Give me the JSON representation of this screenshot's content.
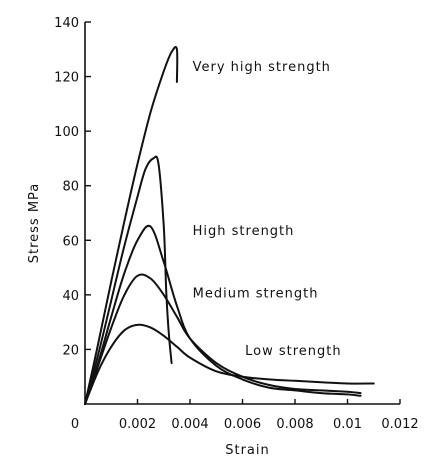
{
  "chart_data": {
    "type": "line",
    "title": "",
    "xlabel": "Strain",
    "ylabel": "Stress MPa",
    "xlim": [
      0,
      0.012
    ],
    "ylim": [
      0,
      140
    ],
    "x_ticks": [
      "0",
      "0.002",
      "0.004",
      "0.006",
      "0.008",
      "0.01",
      "0.012"
    ],
    "y_ticks": [
      "20",
      "40",
      "60",
      "80",
      "100",
      "120",
      "140"
    ],
    "grid": false,
    "legend": "none",
    "series": [
      {
        "name": "Very high strength",
        "x": [
          0,
          0.0005,
          0.001,
          0.0015,
          0.002,
          0.0025,
          0.003,
          0.0033,
          0.0035,
          0.0035
        ],
        "y": [
          0,
          22,
          45,
          67,
          88,
          107,
          122,
          129,
          130,
          118
        ]
      },
      {
        "name": "High strength",
        "x": [
          0,
          0.0005,
          0.001,
          0.0015,
          0.002,
          0.0023,
          0.0026,
          0.0028,
          0.003,
          0.0031,
          0.0032,
          0.0033
        ],
        "y": [
          0,
          18,
          38,
          58,
          76,
          86,
          90,
          88,
          65,
          40,
          25,
          15
        ]
      },
      {
        "name": "Medium strength",
        "x": [
          0,
          0.0005,
          0.001,
          0.0015,
          0.002,
          0.0025,
          0.003,
          0.0035,
          0.004,
          0.005,
          0.006,
          0.007,
          0.008,
          0.009,
          0.01,
          0.0105
        ],
        "y": [
          0,
          15,
          32,
          48,
          60,
          65,
          52,
          36,
          24,
          14,
          9,
          6,
          5,
          4,
          3.5,
          3
        ]
      },
      {
        "name": "Medium strength",
        "x": [
          0,
          0.0005,
          0.001,
          0.0015,
          0.002,
          0.0025,
          0.003,
          0.0035,
          0.004,
          0.005,
          0.006,
          0.007,
          0.008,
          0.009,
          0.01,
          0.0105
        ],
        "y": [
          0,
          14,
          28,
          40,
          47,
          46,
          40,
          32,
          24,
          15,
          10,
          7,
          5.5,
          5,
          4.5,
          4
        ]
      },
      {
        "name": "Low strength",
        "x": [
          0,
          0.0005,
          0.001,
          0.0015,
          0.002,
          0.0025,
          0.003,
          0.0035,
          0.004,
          0.005,
          0.006,
          0.007,
          0.008,
          0.009,
          0.01,
          0.011
        ],
        "y": [
          0,
          12,
          21,
          27,
          29,
          28,
          25,
          21,
          17,
          12,
          10,
          9,
          8.5,
          8,
          7.5,
          7.5
        ]
      }
    ],
    "annotations": [
      {
        "text": "Very high strength",
        "x": 0.0041,
        "y": 122
      },
      {
        "text": "High strength",
        "x": 0.0041,
        "y": 62
      },
      {
        "text": "Medium strength",
        "x": 0.0041,
        "y": 39
      },
      {
        "text": "Low strength",
        "x": 0.0061,
        "y": 18
      }
    ]
  }
}
